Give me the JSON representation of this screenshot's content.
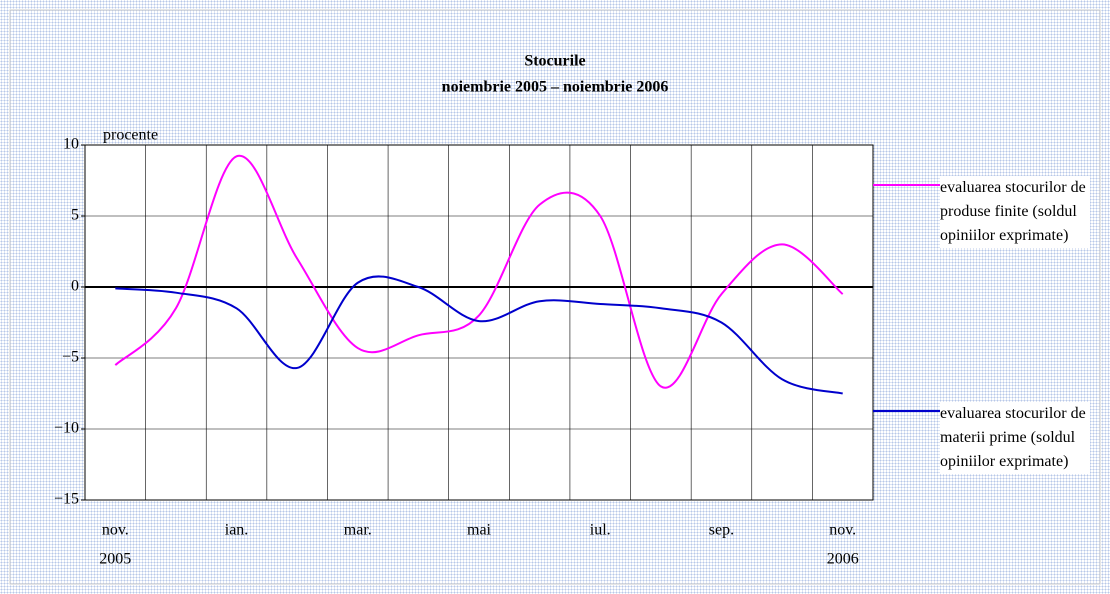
{
  "chart_data": {
    "type": "line",
    "title": "Stocurile",
    "subtitle": "noiembrie 2005 – noiembrie 2006",
    "y_axis_label": "procente",
    "categories": [
      "nov.",
      null,
      "ian.",
      null,
      "mar.",
      null,
      "mai",
      null,
      "iul.",
      null,
      "sep.",
      null,
      "nov."
    ],
    "category_years": [
      "2005",
      null,
      null,
      null,
      null,
      null,
      null,
      null,
      null,
      null,
      null,
      null,
      "2006"
    ],
    "series": [
      {
        "name": "evaluarea stocurilor de produse finite (soldul opiniilor exprimate)",
        "color": "#ff00ff",
        "values": [
          -5.5,
          -1.5,
          9.2,
          2,
          -4.3,
          -3.4,
          -2,
          5.8,
          5,
          -7,
          -0.5,
          3,
          -0.5
        ]
      },
      {
        "name": "evaluarea stocurilor de materii prime (soldul opiniilor exprimate)",
        "color": "#0000cc",
        "values": [
          -0.1,
          -0.4,
          -1.5,
          -5.7,
          0.3,
          0,
          -2.4,
          -1,
          -1.2,
          -1.5,
          -2.5,
          -6.5,
          -7.5
        ]
      }
    ],
    "ylim": [
      -15,
      10
    ],
    "yticks": [
      {
        "value": -15,
        "label": "−15"
      },
      {
        "value": -10,
        "label": "−10"
      },
      {
        "value": -5,
        "label": "−5"
      },
      0,
      5,
      10
    ],
    "grid": true,
    "legend": "right"
  }
}
